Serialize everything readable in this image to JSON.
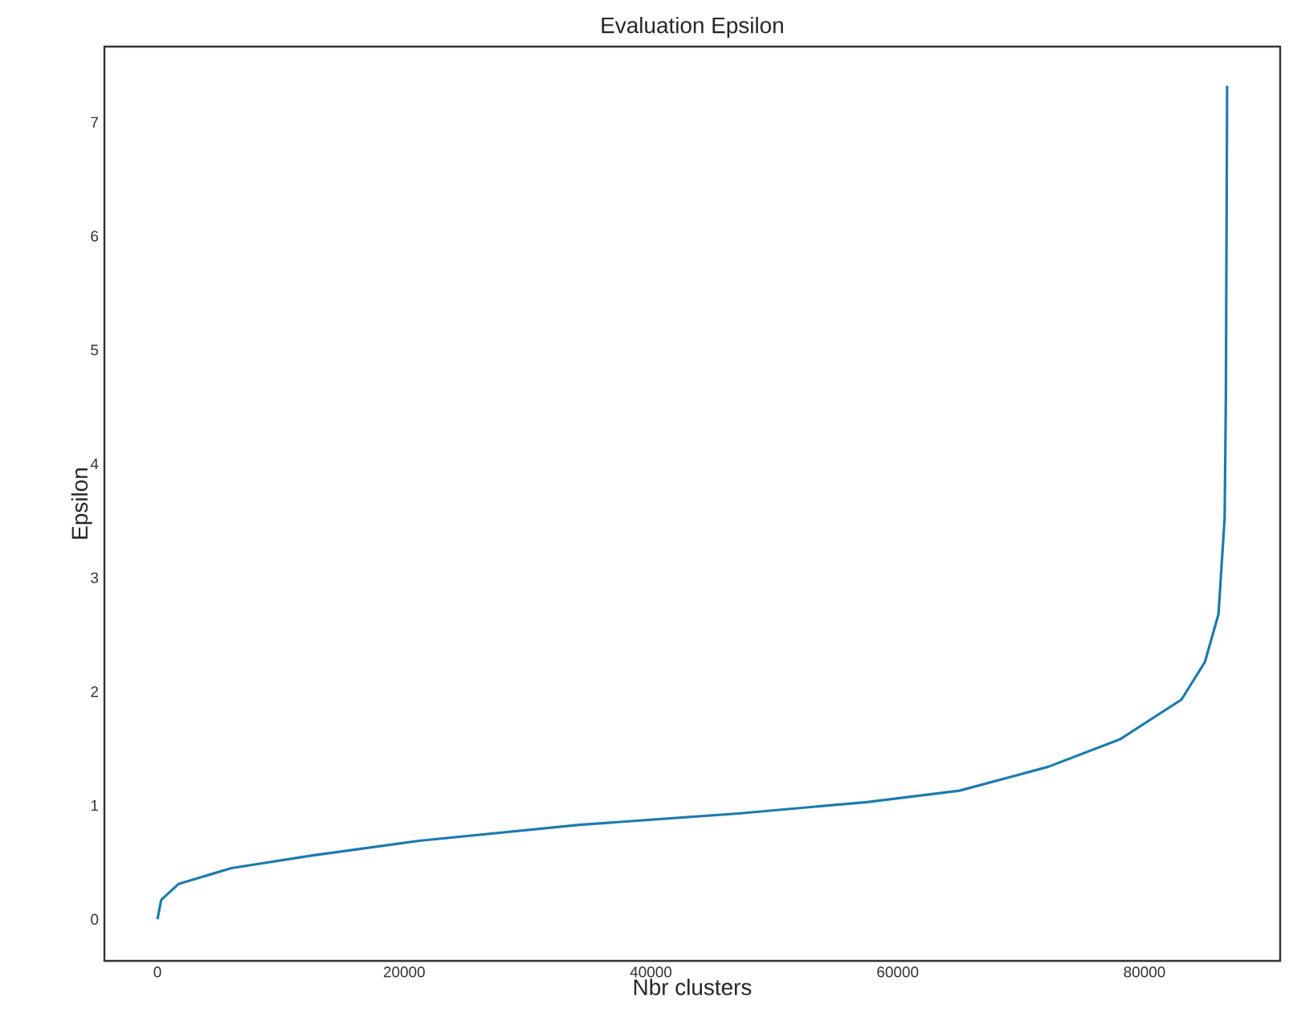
{
  "chart_data": {
    "type": "line",
    "title": "Evaluation Epsilon",
    "xlabel": "Nbr clusters",
    "ylabel": "Epsilon",
    "xlim": [
      -4300,
      91000
    ],
    "ylim": [
      -0.365,
      7.665
    ],
    "xticks": [
      0,
      20000,
      40000,
      60000,
      80000
    ],
    "yticks": [
      0,
      1,
      2,
      3,
      4,
      5,
      6,
      7
    ],
    "grid": false,
    "marker": "none",
    "line_style": "solid",
    "series": [
      {
        "color": "#1b7bad",
        "x": [
          0,
          300,
          1700,
          6000,
          12500,
          21200,
          34200,
          47100,
          57500,
          65000,
          72200,
          78000,
          80000,
          83000,
          84900,
          86000,
          86500,
          86600,
          86700
        ],
        "values": [
          0,
          0.17,
          0.31,
          0.45,
          0.56,
          0.69,
          0.83,
          0.93,
          1.03,
          1.13,
          1.34,
          1.58,
          1.72,
          1.93,
          2.26,
          2.68,
          3.53,
          4.6,
          7.32
        ]
      }
    ]
  }
}
